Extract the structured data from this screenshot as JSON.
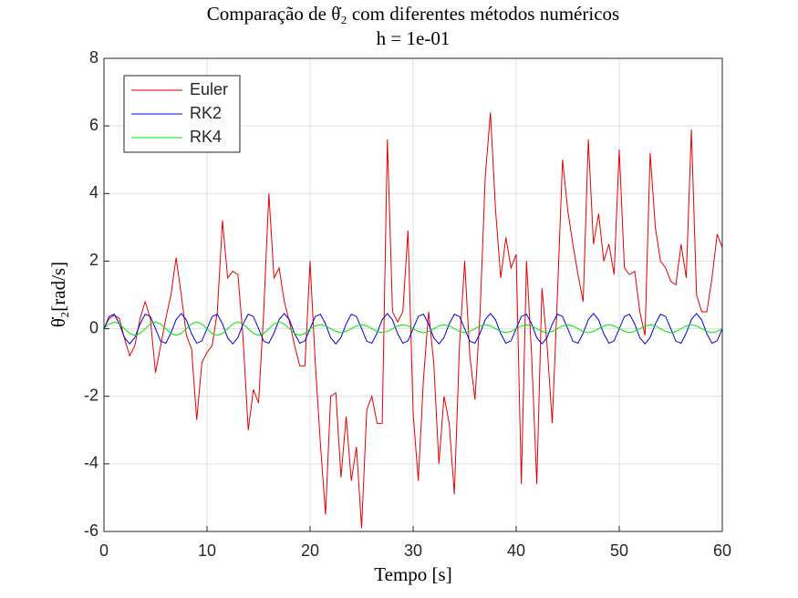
{
  "chart_data": {
    "type": "line",
    "title": "Comparação de θ̇₂ com diferentes métodos numéricos",
    "subtitle": "h = 1e-01",
    "x_label": "Tempo [s]",
    "y_label": "θ̇₂[rad/s]",
    "x": [
      0,
      0.5,
      1,
      1.5,
      2,
      2.5,
      3,
      3.5,
      4,
      4.5,
      5,
      5.5,
      6,
      6.5,
      7,
      7.5,
      8,
      8.5,
      9,
      9.5,
      10,
      10.5,
      11,
      11.5,
      12,
      12.5,
      13,
      13.5,
      14,
      14.5,
      15,
      15.5,
      16,
      16.5,
      17,
      17.5,
      18,
      18.5,
      19,
      19.5,
      20,
      20.5,
      21,
      21.5,
      22,
      22.5,
      23,
      23.5,
      24,
      24.5,
      25,
      25.5,
      26,
      26.5,
      27,
      27.5,
      28,
      28.5,
      29,
      29.5,
      30,
      30.5,
      31,
      31.5,
      32,
      32.5,
      33,
      33.5,
      34,
      34.5,
      35,
      35.5,
      36,
      36.5,
      37,
      37.5,
      38,
      38.5,
      39,
      39.5,
      40,
      40.5,
      41,
      41.5,
      42,
      42.5,
      43,
      43.5,
      44,
      44.5,
      45,
      45.5,
      46,
      46.5,
      47,
      47.5,
      48,
      48.5,
      49,
      49.5,
      50,
      50.5,
      51,
      51.5,
      52,
      52.5,
      53,
      53.5,
      54,
      54.5,
      55,
      55.5,
      56,
      56.5,
      57,
      57.5,
      58,
      58.5,
      59,
      59.5,
      60
    ],
    "series": [
      {
        "name": "Euler",
        "color": "#e60000",
        "values": [
          0,
          0.3,
          0.4,
          0.3,
          -0.3,
          -0.8,
          -0.5,
          0.3,
          0.8,
          0.3,
          -1.3,
          -0.5,
          0.3,
          1.0,
          2.1,
          1.0,
          -0.2,
          -0.6,
          -2.7,
          -1.0,
          -0.7,
          -0.5,
          0.5,
          3.2,
          1.5,
          1.7,
          1.6,
          -0.3,
          -3.0,
          -1.8,
          -2.2,
          0.5,
          4.0,
          1.5,
          1.8,
          0.8,
          0.2,
          -0.5,
          -1.1,
          -1.1,
          2.0,
          -1.0,
          -3.4,
          -5.5,
          -2.0,
          -1.9,
          -4.4,
          -2.6,
          -4.5,
          -3.5,
          -5.9,
          -2.4,
          -2.0,
          -2.8,
          -2.8,
          5.6,
          0.5,
          0.2,
          0.5,
          2.9,
          -2.5,
          -4.5,
          -1.5,
          0.5,
          -1.0,
          -4.0,
          -2.0,
          -2.8,
          -4.9,
          -0.5,
          2.0,
          -0.8,
          -2.1,
          0.5,
          4.5,
          6.4,
          3.5,
          1.5,
          2.7,
          1.8,
          2.2,
          -4.6,
          2.0,
          -0.8,
          -4.6,
          1.2,
          -0.5,
          -2.8,
          1.0,
          5.0,
          3.5,
          2.5,
          1.6,
          0.8,
          5.6,
          2.5,
          3.4,
          2.0,
          2.5,
          1.6,
          5.3,
          1.8,
          1.6,
          1.7,
          0.5,
          -0.2,
          5.2,
          3.0,
          2.0,
          1.8,
          1.4,
          1.3,
          2.5,
          1.5,
          5.9,
          1.0,
          0.5,
          0.5,
          1.5,
          2.8,
          2.4
        ]
      },
      {
        "name": "RK2",
        "color": "#0000e6",
        "values": [
          0,
          0.36,
          0.43,
          0.14,
          -0.27,
          -0.45,
          -0.26,
          0.14,
          0.43,
          0.36,
          0,
          -0.37,
          -0.43,
          -0.13,
          0.27,
          0.45,
          0.26,
          -0.15,
          -0.43,
          -0.36,
          0,
          0.36,
          0.43,
          0.14,
          -0.27,
          -0.45,
          -0.26,
          0.14,
          0.43,
          0.36,
          0,
          -0.37,
          -0.43,
          -0.13,
          0.27,
          0.45,
          0.26,
          -0.15,
          -0.43,
          -0.36,
          0,
          0.36,
          0.43,
          0.14,
          -0.27,
          -0.45,
          -0.26,
          0.14,
          0.43,
          0.36,
          0,
          -0.37,
          -0.43,
          -0.13,
          0.27,
          0.45,
          0.26,
          -0.15,
          -0.43,
          -0.36,
          0,
          0.36,
          0.43,
          0.14,
          -0.27,
          -0.45,
          -0.26,
          0.14,
          0.43,
          0.36,
          0,
          -0.37,
          -0.43,
          -0.13,
          0.27,
          0.45,
          0.26,
          -0.15,
          -0.43,
          -0.36,
          0,
          0.36,
          0.43,
          0.14,
          -0.27,
          -0.45,
          -0.26,
          0.14,
          0.43,
          0.36,
          0,
          -0.37,
          -0.43,
          -0.13,
          0.27,
          0.45,
          0.26,
          -0.15,
          -0.43,
          -0.36,
          0,
          0.36,
          0.43,
          0.14,
          -0.27,
          -0.45,
          -0.26,
          0.14,
          0.43,
          0.36,
          0,
          -0.37,
          -0.43,
          -0.13,
          0.27,
          0.45,
          0.26,
          -0.15,
          -0.43,
          -0.36,
          0
        ]
      },
      {
        "name": "RK4",
        "color": "#00e600",
        "values": [
          0,
          0.14,
          0.2,
          0.14,
          0,
          -0.14,
          -0.2,
          -0.14,
          0,
          0.14,
          0.2,
          0.14,
          0,
          -0.14,
          -0.2,
          -0.14,
          0,
          0.14,
          0.2,
          0.14,
          0,
          -0.14,
          -0.2,
          -0.14,
          0,
          0.14,
          0.2,
          0.14,
          0,
          -0.14,
          -0.2,
          -0.14,
          0,
          0.14,
          0.2,
          0.14,
          0,
          -0.14,
          -0.2,
          -0.14,
          0,
          0.08,
          0.12,
          0.08,
          0,
          -0.08,
          -0.12,
          -0.08,
          0,
          0.08,
          0.12,
          0.08,
          0,
          -0.08,
          -0.12,
          -0.08,
          0,
          0.08,
          0.12,
          0.08,
          0,
          -0.08,
          -0.12,
          -0.08,
          0,
          0.08,
          0.12,
          0.08,
          0,
          -0.08,
          -0.12,
          -0.08,
          0,
          0.08,
          0.12,
          0.08,
          0,
          -0.08,
          -0.12,
          -0.08,
          0,
          0.08,
          0.12,
          0.08,
          0,
          -0.08,
          -0.12,
          -0.08,
          0,
          0.08,
          0.12,
          0.08,
          0,
          -0.08,
          -0.12,
          -0.08,
          0,
          0.08,
          0.12,
          0.08,
          0,
          -0.08,
          -0.12,
          -0.08,
          0,
          0.08,
          0.12,
          0.08,
          0,
          -0.08,
          -0.12,
          -0.08,
          0,
          0.08,
          0.12,
          0.08,
          0,
          -0.08,
          -0.12,
          -0.08,
          0
        ]
      }
    ],
    "xlim": [
      0,
      60
    ],
    "xticks": [
      0,
      10,
      20,
      30,
      40,
      50,
      60
    ],
    "ylim": [
      -6,
      8
    ],
    "yticks": [
      -6,
      -4,
      -2,
      0,
      2,
      4,
      6,
      8
    ],
    "grid": true,
    "legend": "northwest"
  }
}
